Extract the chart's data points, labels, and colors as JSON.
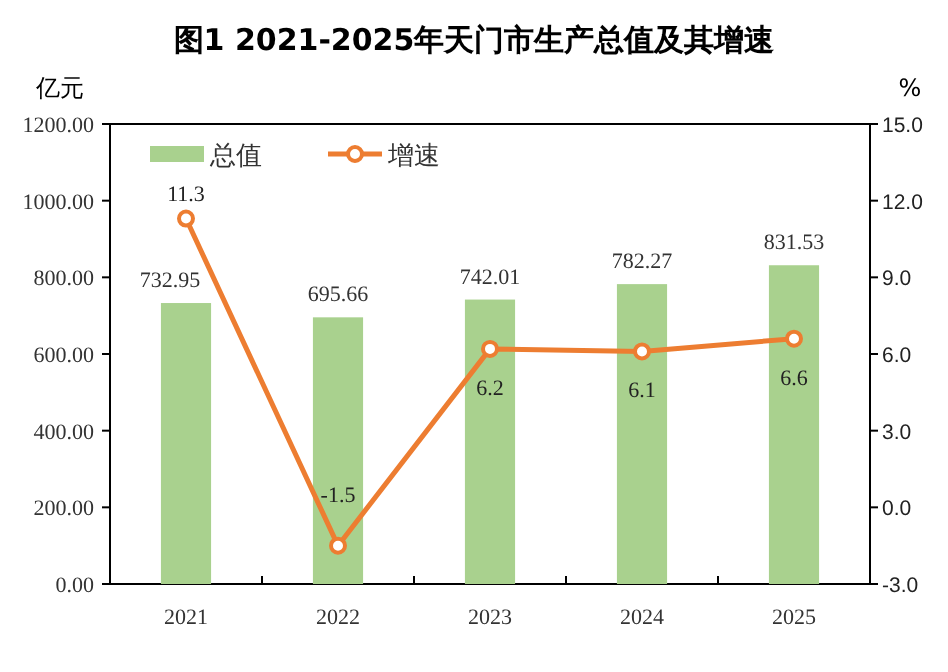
{
  "chart_data": {
    "type": "bar",
    "title": "图1 2021-2025年天门市生产总值及其增速",
    "ylabel": "亿元",
    "y2label": "%",
    "categories": [
      "2021",
      "2022",
      "2023",
      "2024",
      "2025"
    ],
    "series": [
      {
        "name": "总值",
        "color": "#a9d18e",
        "values": [
          732.95,
          695.66,
          742.01,
          782.27,
          831.53
        ]
      },
      {
        "name": "增速",
        "type": "line",
        "axis": "y2",
        "color": "#ed7d31",
        "marker": "circle",
        "values": [
          11.3,
          -1.5,
          6.2,
          6.1,
          6.6
        ]
      }
    ],
    "ylim": [
      0,
      1200
    ],
    "yticks": [
      {
        "value": 0,
        "label": "0.00"
      },
      {
        "value": 200,
        "label": "200.00"
      },
      {
        "value": 400,
        "label": "400.00"
      },
      {
        "value": 600,
        "label": "600.00"
      },
      {
        "value": 800,
        "label": "800.00"
      },
      {
        "value": 1000,
        "label": "1000.00"
      },
      {
        "value": 1200,
        "label": "1200.00"
      }
    ],
    "y2lim": [
      -3,
      15
    ],
    "y2ticks": [
      {
        "value": -3,
        "label": "-3.0"
      },
      {
        "value": 0,
        "label": "0.0"
      },
      {
        "value": 3,
        "label": "3.0"
      },
      {
        "value": 6,
        "label": "6.0"
      },
      {
        "value": 9,
        "label": "9.0"
      },
      {
        "value": 12,
        "label": "12.0"
      },
      {
        "value": 15,
        "label": "15.0"
      }
    ],
    "data_labels": true,
    "legend": "top left",
    "grid": false
  }
}
